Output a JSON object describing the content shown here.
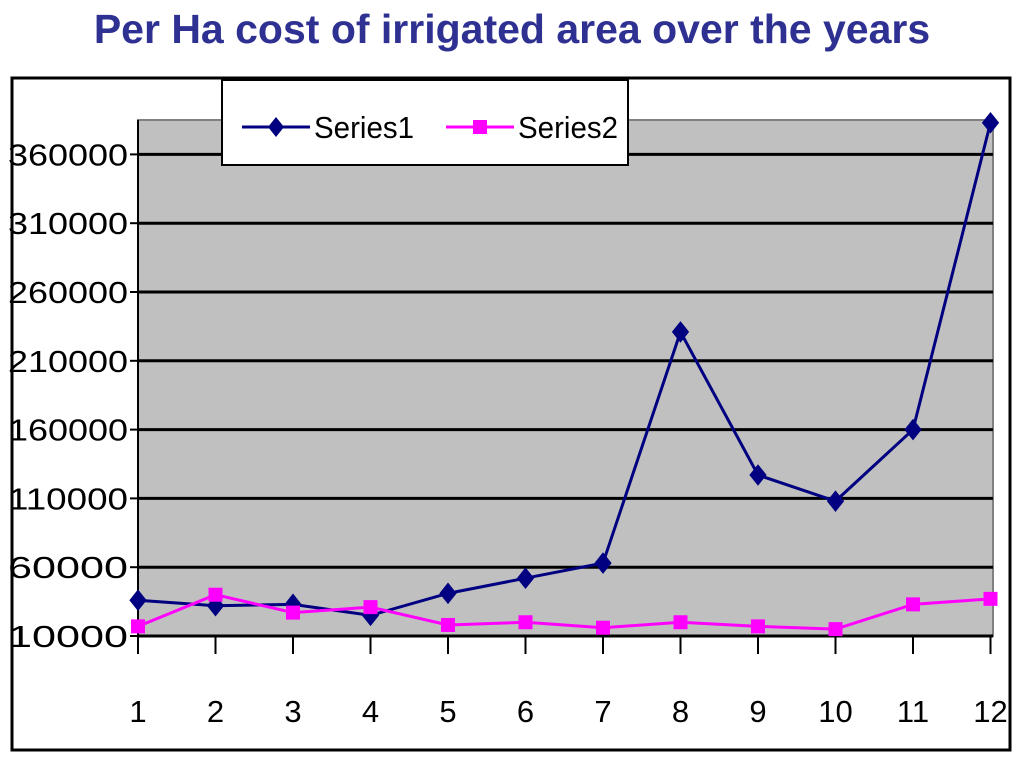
{
  "title": "Per Ha cost of irrigated area over the years",
  "chart_data": {
    "type": "line",
    "title": "Per Ha cost of irrigated area over the years",
    "xlabel": "",
    "ylabel": "",
    "x": [
      1,
      2,
      3,
      4,
      5,
      6,
      7,
      8,
      9,
      10,
      11,
      12
    ],
    "ylim": [
      10000,
      385000
    ],
    "yticks": [
      10000,
      60000,
      110000,
      160000,
      210000,
      260000,
      310000,
      360000
    ],
    "grid": true,
    "legend": "top",
    "plot_background": "#c0c0c0",
    "series": [
      {
        "name": "Series1",
        "color": "#000080",
        "marker": "diamond",
        "values": [
          36000,
          32000,
          33000,
          25000,
          41000,
          52000,
          63000,
          231000,
          127000,
          108000,
          160000,
          383000
        ]
      },
      {
        "name": "Series2",
        "color": "#ff00ff",
        "marker": "square",
        "values": [
          17000,
          40000,
          27000,
          31000,
          18000,
          20000,
          16000,
          20000,
          17000,
          15000,
          33000,
          37000
        ]
      }
    ]
  }
}
